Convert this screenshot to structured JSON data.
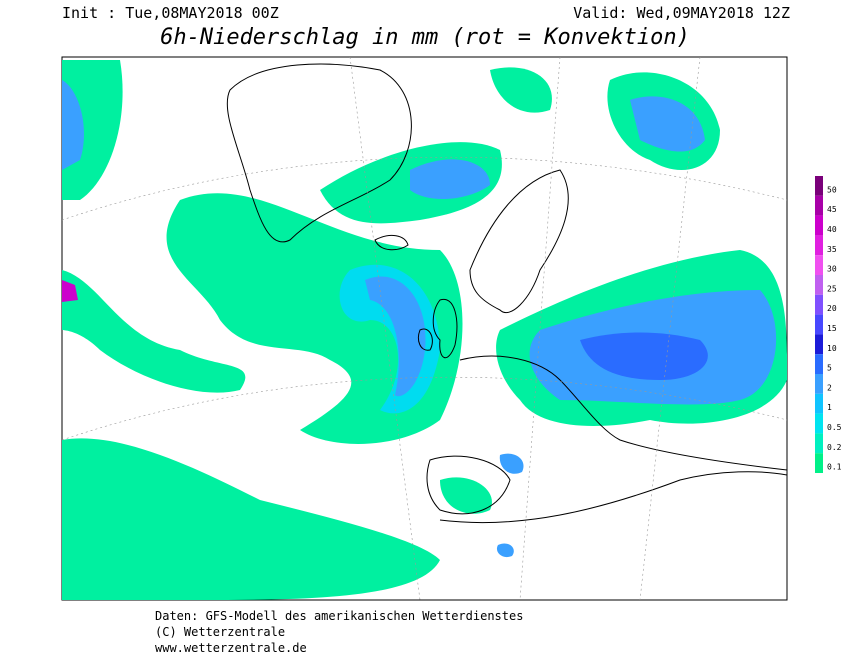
{
  "header": {
    "init": "Init : Tue,08MAY2018 00Z",
    "valid": "Valid: Wed,09MAY2018 12Z",
    "title": "6h-Niederschlag in mm (rot = Konvektion)"
  },
  "legend": {
    "levels": [
      50,
      45,
      40,
      35,
      30,
      25,
      20,
      15,
      10,
      5,
      2,
      1,
      0.5,
      0.2,
      0.1
    ],
    "colors": [
      "#7a007a",
      "#a800a8",
      "#cc00cc",
      "#e020e0",
      "#f050f0",
      "#c060f0",
      "#8050ff",
      "#4848ff",
      "#1c1cd8",
      "#2a6cff",
      "#3aa0ff",
      "#10c4ff",
      "#00e4f0",
      "#00f0c0",
      "#00f088"
    ]
  },
  "footer": {
    "lines": [
      "Daten: GFS-Modell des amerikanischen Wetterdienstes",
      "(C) Wetterzentrale",
      "www.wetterzentrale.de"
    ]
  }
}
